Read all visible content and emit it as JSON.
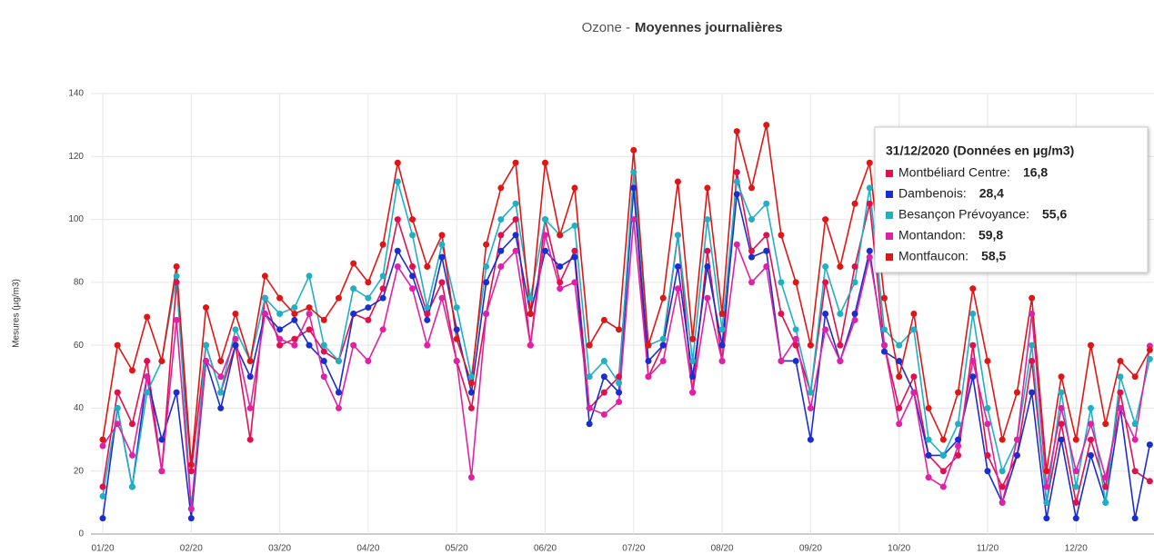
{
  "chart_data": {
    "type": "line",
    "title_parts": [
      "Ozone -",
      "Moyennes journalières"
    ],
    "y_label": "Mesures (µg/m3)",
    "categories": [
      "01/20",
      null,
      null,
      null,
      null,
      null,
      "02/20",
      null,
      null,
      null,
      null,
      null,
      "03/20",
      null,
      null,
      null,
      null,
      null,
      "04/20",
      null,
      null,
      null,
      null,
      null,
      "05/20",
      null,
      null,
      null,
      null,
      null,
      "06/20",
      null,
      null,
      null,
      null,
      null,
      "07/20",
      null,
      null,
      null,
      null,
      null,
      "08/20",
      null,
      null,
      null,
      null,
      null,
      "09/20",
      null,
      null,
      null,
      null,
      null,
      "10/20",
      null,
      null,
      null,
      null,
      null,
      "11/20",
      null,
      null,
      null,
      null,
      null,
      "12/20",
      null,
      null,
      null,
      null,
      null
    ],
    "ylim": [
      0,
      140
    ],
    "yticks": [
      0,
      20,
      40,
      60,
      80,
      100,
      120,
      140
    ],
    "grid": true,
    "series": [
      {
        "color": "#e0104e",
        "values": [
          15,
          45,
          35,
          55,
          20,
          80,
          20,
          60,
          45,
          60,
          30,
          75,
          60,
          62,
          65,
          58,
          55,
          70,
          68,
          78,
          100,
          85,
          70,
          80,
          55,
          40,
          70,
          95,
          100,
          60,
          100,
          80,
          90,
          40,
          45,
          50,
          110,
          50,
          60,
          95,
          45,
          90,
          55,
          115,
          90,
          95,
          70,
          60,
          45,
          80,
          60,
          85,
          105,
          60,
          40,
          50,
          25,
          20,
          25,
          60,
          25,
          15,
          25,
          55,
          10,
          35,
          10,
          30,
          15,
          45,
          20,
          16.8
        ]
      },
      {
        "color": "#1a2ed0",
        "values": [
          5,
          40,
          15,
          50,
          30,
          45,
          5,
          55,
          40,
          60,
          50,
          70,
          65,
          68,
          60,
          55,
          45,
          70,
          72,
          75,
          90,
          82,
          68,
          88,
          65,
          45,
          80,
          90,
          95,
          70,
          90,
          85,
          88,
          35,
          50,
          45,
          110,
          55,
          60,
          85,
          50,
          85,
          60,
          108,
          88,
          90,
          55,
          55,
          30,
          70,
          55,
          70,
          90,
          58,
          55,
          45,
          25,
          25,
          30,
          50,
          20,
          10,
          25,
          45,
          5,
          30,
          5,
          25,
          10,
          40,
          5,
          28.4
        ]
      },
      {
        "color": "#1fb0c4",
        "values": [
          12,
          40,
          15,
          45,
          55,
          82,
          8,
          60,
          45,
          65,
          55,
          75,
          70,
          72,
          82,
          60,
          55,
          78,
          75,
          82,
          112,
          95,
          72,
          92,
          72,
          50,
          85,
          100,
          105,
          75,
          100,
          95,
          98,
          50,
          55,
          48,
          115,
          60,
          62,
          95,
          55,
          100,
          65,
          112,
          100,
          105,
          80,
          65,
          45,
          85,
          70,
          80,
          110,
          65,
          60,
          65,
          30,
          25,
          35,
          70,
          40,
          20,
          30,
          60,
          10,
          45,
          15,
          40,
          10,
          50,
          35,
          55.6
        ]
      },
      {
        "color": "#e021a6",
        "values": [
          28,
          35,
          25,
          50,
          20,
          68,
          8,
          55,
          50,
          62,
          40,
          70,
          62,
          60,
          70,
          50,
          40,
          60,
          55,
          65,
          85,
          78,
          60,
          75,
          55,
          18,
          70,
          85,
          90,
          60,
          95,
          78,
          80,
          40,
          38,
          42,
          100,
          50,
          55,
          78,
          45,
          75,
          55,
          92,
          80,
          85,
          55,
          62,
          40,
          65,
          55,
          68,
          88,
          60,
          35,
          45,
          18,
          15,
          28,
          55,
          35,
          10,
          30,
          70,
          15,
          40,
          20,
          35,
          18,
          40,
          30,
          59.8
        ]
      },
      {
        "color": "#e01515",
        "values": [
          30,
          60,
          52,
          69,
          55,
          85,
          22,
          72,
          55,
          70,
          55,
          82,
          75,
          70,
          72,
          68,
          75,
          86,
          80,
          92,
          118,
          100,
          85,
          95,
          62,
          48,
          92,
          110,
          118,
          70,
          118,
          95,
          110,
          60,
          68,
          65,
          122,
          60,
          75,
          112,
          62,
          110,
          70,
          128,
          110,
          130,
          95,
          80,
          60,
          100,
          85,
          105,
          118,
          75,
          50,
          70,
          40,
          30,
          45,
          78,
          55,
          30,
          45,
          75,
          20,
          50,
          30,
          60,
          35,
          55,
          50,
          58.5
        ]
      }
    ],
    "tooltip": {
      "title": "31/12/2020 (Données en µg/m3)",
      "items": [
        {
          "label": "Montbéliard Centre:",
          "value": "16,8"
        },
        {
          "label": "Dambenois:",
          "value": "28,4"
        },
        {
          "label": "Besançon Prévoyance:",
          "value": "55,6"
        },
        {
          "label": "Montandon:",
          "value": "59,8"
        },
        {
          "label": "Montfaucon:",
          "value": "58,5"
        }
      ]
    }
  }
}
